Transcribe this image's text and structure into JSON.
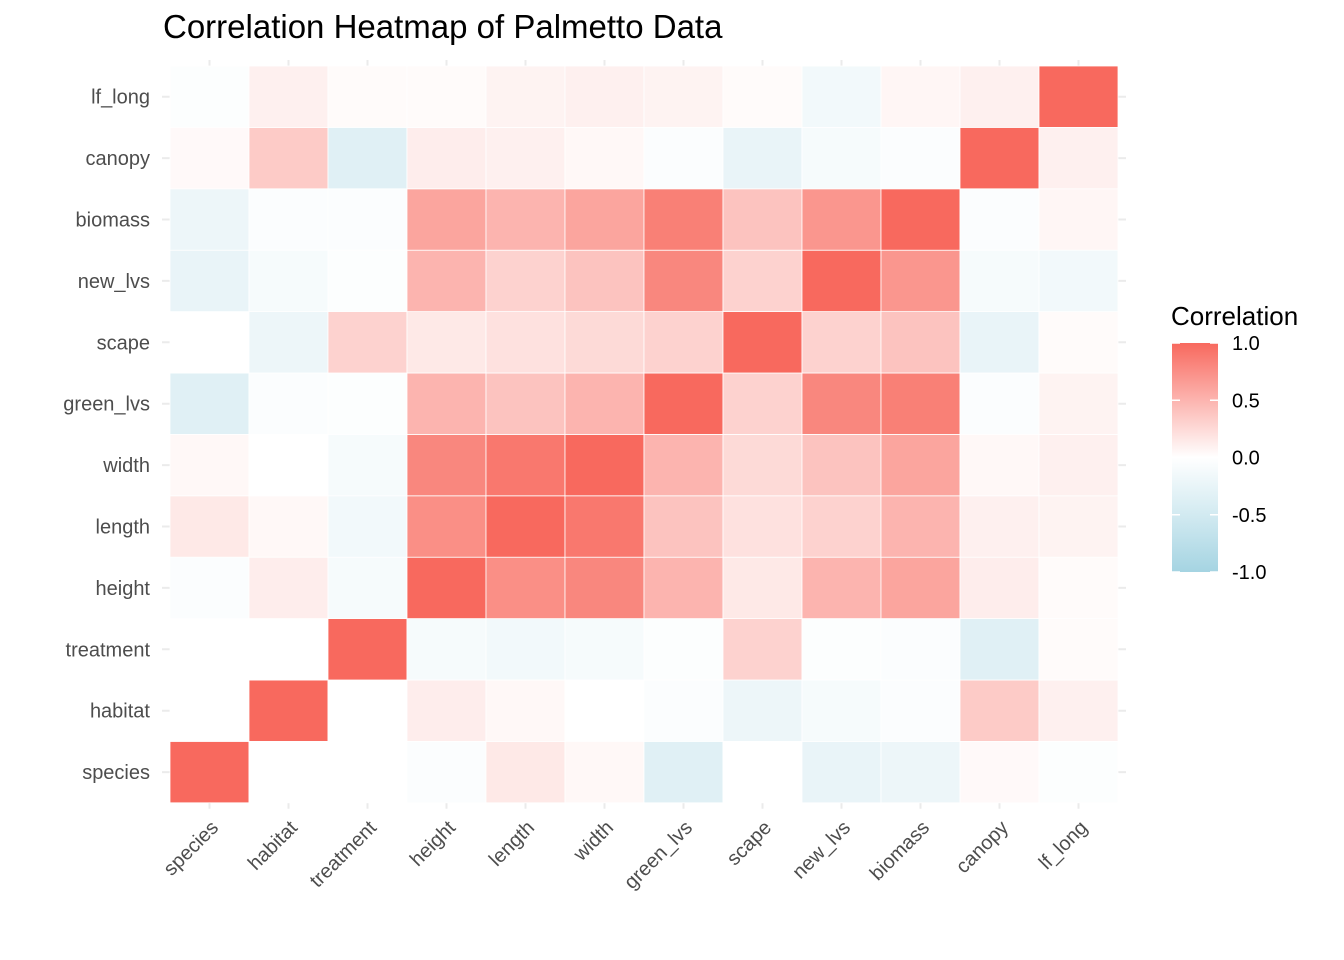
{
  "chart_data": {
    "type": "heatmap",
    "title": "Correlation Heatmap of Palmetto Data",
    "xlabel": "",
    "ylabel": "",
    "variables": [
      "species",
      "habitat",
      "treatment",
      "height",
      "length",
      "width",
      "green_lvs",
      "scape",
      "new_lvs",
      "biomass",
      "canopy",
      "lf_long"
    ],
    "matrix": [
      [
        1.0,
        0.0,
        0.0,
        -0.05,
        0.15,
        0.05,
        -0.35,
        0.0,
        -0.25,
        -0.2,
        0.04,
        -0.03
      ],
      [
        0.0,
        1.0,
        0.0,
        0.12,
        0.05,
        0.0,
        -0.05,
        -0.2,
        -0.1,
        -0.05,
        0.35,
        0.1
      ],
      [
        0.0,
        0.0,
        1.0,
        -0.1,
        -0.15,
        -0.1,
        -0.03,
        0.3,
        -0.03,
        -0.05,
        -0.35,
        0.03
      ],
      [
        -0.05,
        0.12,
        -0.1,
        1.0,
        0.75,
        0.8,
        0.5,
        0.15,
        0.5,
        0.6,
        0.12,
        0.03
      ],
      [
        0.15,
        0.05,
        -0.15,
        0.75,
        1.0,
        0.9,
        0.4,
        0.2,
        0.3,
        0.5,
        0.1,
        0.08
      ],
      [
        0.05,
        0.0,
        -0.1,
        0.8,
        0.9,
        1.0,
        0.5,
        0.25,
        0.4,
        0.6,
        0.05,
        0.1
      ],
      [
        -0.35,
        -0.05,
        -0.03,
        0.5,
        0.4,
        0.5,
        1.0,
        0.3,
        0.8,
        0.85,
        -0.05,
        0.08
      ],
      [
        0.0,
        -0.2,
        0.3,
        0.15,
        0.2,
        0.25,
        0.3,
        1.0,
        0.3,
        0.4,
        -0.25,
        0.03
      ],
      [
        -0.25,
        -0.1,
        -0.03,
        0.5,
        0.3,
        0.4,
        0.8,
        0.3,
        1.0,
        0.7,
        -0.1,
        -0.15
      ],
      [
        -0.2,
        -0.05,
        -0.05,
        0.6,
        0.5,
        0.6,
        0.85,
        0.4,
        0.7,
        1.0,
        -0.05,
        0.06
      ],
      [
        0.04,
        0.35,
        -0.35,
        0.12,
        0.1,
        0.05,
        -0.05,
        -0.25,
        -0.1,
        -0.05,
        1.0,
        0.1
      ],
      [
        -0.03,
        0.1,
        0.03,
        0.03,
        0.08,
        0.1,
        0.08,
        0.03,
        -0.15,
        0.06,
        0.1,
        1.0
      ]
    ],
    "color_scale": {
      "low": "#a5d4e2",
      "mid": "#ffffff",
      "high": "#f8695e",
      "limits": [
        -1,
        1
      ]
    },
    "legend": {
      "title": "Correlation",
      "ticks": [
        1.0,
        0.5,
        0.0,
        -0.5,
        -1.0
      ],
      "tick_labels": [
        "1.0",
        "0.5",
        "0.0",
        "-0.5",
        "-1.0"
      ],
      "position": "right"
    },
    "grid": true
  }
}
